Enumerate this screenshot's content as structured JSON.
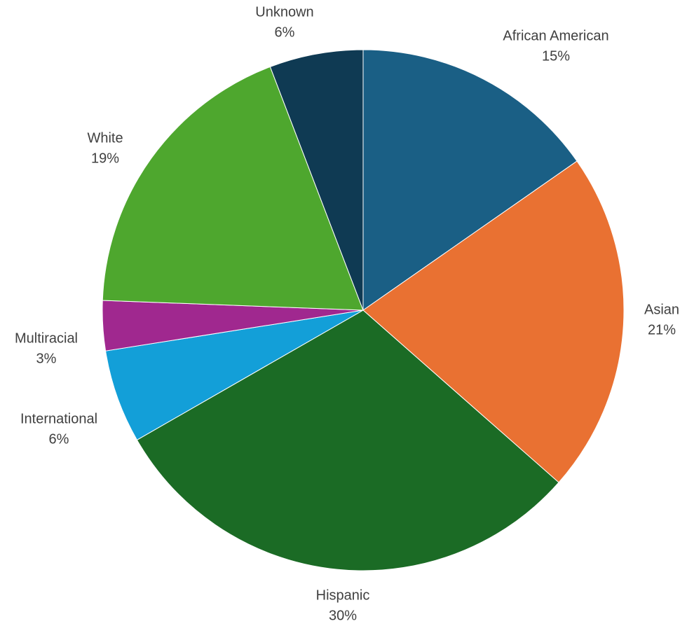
{
  "chart_data": {
    "type": "pie",
    "title": "",
    "start_angle_deg": 0,
    "direction": "clockwise",
    "slices": [
      {
        "label": "African American",
        "percent_label": "15%",
        "value": 15.3,
        "color": "#1a5f85"
      },
      {
        "label": "Asian",
        "percent_label": "21%",
        "value": 21.2,
        "color": "#e97132"
      },
      {
        "label": "Hispanic",
        "percent_label": "30%",
        "value": 30.2,
        "color": "#1b6b25"
      },
      {
        "label": "International",
        "percent_label": "6%",
        "value": 5.8,
        "color": "#139fd8"
      },
      {
        "label": "Multiracial",
        "percent_label": "3%",
        "value": 3.1,
        "color": "#a0288f"
      },
      {
        "label": "White",
        "percent_label": "19%",
        "value": 18.6,
        "color": "#4ea72e"
      },
      {
        "label": "Unknown",
        "percent_label": "6%",
        "value": 5.8,
        "color": "#0f3a53"
      }
    ]
  }
}
